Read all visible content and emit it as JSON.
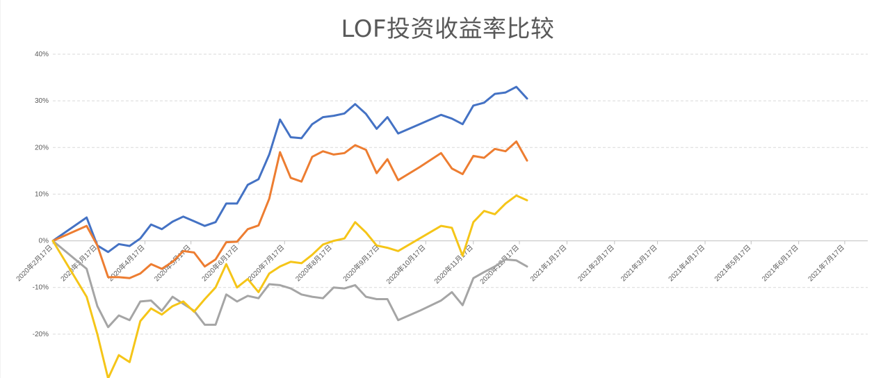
{
  "chart_data": {
    "type": "line",
    "title": "LOF投资收益率比较",
    "xlabel": "",
    "ylabel": "",
    "ylim": [
      -0.3,
      0.4
    ],
    "y_ticks": [
      {
        "value": 0.4,
        "label": "40%"
      },
      {
        "value": 0.3,
        "label": "30%"
      },
      {
        "value": 0.2,
        "label": "20%"
      },
      {
        "value": 0.1,
        "label": "10%"
      },
      {
        "value": 0.0,
        "label": "0%"
      },
      {
        "value": -0.1,
        "label": "-10%"
      },
      {
        "value": -0.2,
        "label": "-20%"
      }
    ],
    "x_ticks": [
      "2020年2月17日",
      "2020年3月17日",
      "2020年4月17日",
      "2020年5月17日",
      "2020年6月17日",
      "2020年7月17日",
      "2020年8月17日",
      "2020年9月17日",
      "2020年10月17日",
      "2020年11月17日",
      "2020年12月17日",
      "2021年1月17日",
      "2021年2月17日",
      "2021年3月17日",
      "2021年4月17日",
      "2021年5月17日",
      "2021年6月17日",
      "2021年7月17日"
    ],
    "x_range": [
      "2020-02-17",
      "2021-08-01"
    ],
    "grid": true,
    "series": [
      {
        "color": "#4472C4",
        "points": [
          [
            "2020-02-17",
            0.0
          ],
          [
            "2020-03-10",
            0.05
          ],
          [
            "2020-03-17",
            -0.01
          ],
          [
            "2020-03-24",
            -0.024
          ],
          [
            "2020-03-31",
            -0.007
          ],
          [
            "2020-04-07",
            -0.011
          ],
          [
            "2020-04-14",
            0.005
          ],
          [
            "2020-04-21",
            0.035
          ],
          [
            "2020-04-28",
            0.025
          ],
          [
            "2020-05-05",
            0.041
          ],
          [
            "2020-05-12",
            0.052
          ],
          [
            "2020-05-19",
            0.042
          ],
          [
            "2020-05-26",
            0.032
          ],
          [
            "2020-06-02",
            0.04
          ],
          [
            "2020-06-09",
            0.08
          ],
          [
            "2020-06-16",
            0.08
          ],
          [
            "2020-06-23",
            0.12
          ],
          [
            "2020-06-30",
            0.132
          ],
          [
            "2020-07-07",
            0.185
          ],
          [
            "2020-07-14",
            0.26
          ],
          [
            "2020-07-21",
            0.222
          ],
          [
            "2020-07-28",
            0.22
          ],
          [
            "2020-08-04",
            0.25
          ],
          [
            "2020-08-11",
            0.265
          ],
          [
            "2020-08-18",
            0.268
          ],
          [
            "2020-08-25",
            0.273
          ],
          [
            "2020-09-01",
            0.293
          ],
          [
            "2020-09-08",
            0.272
          ],
          [
            "2020-09-15",
            0.24
          ],
          [
            "2020-09-22",
            0.265
          ],
          [
            "2020-09-29",
            0.23
          ],
          [
            "2020-10-13",
            0.25
          ],
          [
            "2020-10-27",
            0.27
          ],
          [
            "2020-11-03",
            0.262
          ],
          [
            "2020-11-10",
            0.25
          ],
          [
            "2020-11-17",
            0.29
          ],
          [
            "2020-11-24",
            0.296
          ],
          [
            "2020-12-01",
            0.315
          ],
          [
            "2020-12-08",
            0.318
          ],
          [
            "2020-12-15",
            0.33
          ],
          [
            "2020-12-22",
            0.305
          ]
        ]
      },
      {
        "color": "#ED7D31",
        "points": [
          [
            "2020-02-17",
            0.0
          ],
          [
            "2020-03-10",
            0.032
          ],
          [
            "2020-03-17",
            -0.01
          ],
          [
            "2020-03-24",
            -0.078
          ],
          [
            "2020-03-31",
            -0.078
          ],
          [
            "2020-04-07",
            -0.08
          ],
          [
            "2020-04-14",
            -0.07
          ],
          [
            "2020-04-21",
            -0.05
          ],
          [
            "2020-04-28",
            -0.06
          ],
          [
            "2020-05-05",
            -0.045
          ],
          [
            "2020-05-12",
            -0.022
          ],
          [
            "2020-05-19",
            -0.025
          ],
          [
            "2020-05-26",
            -0.055
          ],
          [
            "2020-06-02",
            -0.04
          ],
          [
            "2020-06-09",
            -0.003
          ],
          [
            "2020-06-16",
            -0.002
          ],
          [
            "2020-06-23",
            0.025
          ],
          [
            "2020-06-30",
            0.033
          ],
          [
            "2020-07-07",
            0.09
          ],
          [
            "2020-07-14",
            0.19
          ],
          [
            "2020-07-21",
            0.135
          ],
          [
            "2020-07-28",
            0.127
          ],
          [
            "2020-08-04",
            0.18
          ],
          [
            "2020-08-11",
            0.192
          ],
          [
            "2020-08-18",
            0.185
          ],
          [
            "2020-08-25",
            0.188
          ],
          [
            "2020-09-01",
            0.205
          ],
          [
            "2020-09-08",
            0.195
          ],
          [
            "2020-09-15",
            0.145
          ],
          [
            "2020-09-22",
            0.175
          ],
          [
            "2020-09-29",
            0.13
          ],
          [
            "2020-10-13",
            0.158
          ],
          [
            "2020-10-27",
            0.188
          ],
          [
            "2020-11-03",
            0.155
          ],
          [
            "2020-11-10",
            0.143
          ],
          [
            "2020-11-17",
            0.182
          ],
          [
            "2020-11-24",
            0.178
          ],
          [
            "2020-12-01",
            0.197
          ],
          [
            "2020-12-08",
            0.192
          ],
          [
            "2020-12-15",
            0.213
          ],
          [
            "2020-12-22",
            0.172
          ]
        ]
      },
      {
        "color": "#A5A5A5",
        "points": [
          [
            "2020-02-17",
            0.0
          ],
          [
            "2020-03-10",
            -0.06
          ],
          [
            "2020-03-17",
            -0.14
          ],
          [
            "2020-03-24",
            -0.185
          ],
          [
            "2020-03-31",
            -0.16
          ],
          [
            "2020-04-07",
            -0.17
          ],
          [
            "2020-04-14",
            -0.13
          ],
          [
            "2020-04-21",
            -0.128
          ],
          [
            "2020-04-28",
            -0.15
          ],
          [
            "2020-05-05",
            -0.12
          ],
          [
            "2020-05-12",
            -0.135
          ],
          [
            "2020-05-19",
            -0.15
          ],
          [
            "2020-05-26",
            -0.18
          ],
          [
            "2020-06-02",
            -0.18
          ],
          [
            "2020-06-09",
            -0.115
          ],
          [
            "2020-06-16",
            -0.13
          ],
          [
            "2020-06-23",
            -0.118
          ],
          [
            "2020-06-30",
            -0.123
          ],
          [
            "2020-07-07",
            -0.093
          ],
          [
            "2020-07-14",
            -0.095
          ],
          [
            "2020-07-21",
            -0.102
          ],
          [
            "2020-07-28",
            -0.115
          ],
          [
            "2020-08-04",
            -0.12
          ],
          [
            "2020-08-11",
            -0.123
          ],
          [
            "2020-08-18",
            -0.1
          ],
          [
            "2020-08-25",
            -0.102
          ],
          [
            "2020-09-01",
            -0.095
          ],
          [
            "2020-09-08",
            -0.12
          ],
          [
            "2020-09-15",
            -0.125
          ],
          [
            "2020-09-22",
            -0.125
          ],
          [
            "2020-09-29",
            -0.17
          ],
          [
            "2020-10-13",
            -0.15
          ],
          [
            "2020-10-27",
            -0.128
          ],
          [
            "2020-11-03",
            -0.11
          ],
          [
            "2020-11-10",
            -0.138
          ],
          [
            "2020-11-17",
            -0.08
          ],
          [
            "2020-11-24",
            -0.067
          ],
          [
            "2020-12-01",
            -0.055
          ],
          [
            "2020-12-08",
            -0.04
          ],
          [
            "2020-12-15",
            -0.042
          ],
          [
            "2020-12-22",
            -0.055
          ]
        ]
      },
      {
        "color": "#F5C518",
        "points": [
          [
            "2020-02-17",
            0.0
          ],
          [
            "2020-03-10",
            -0.12
          ],
          [
            "2020-03-17",
            -0.2
          ],
          [
            "2020-03-24",
            -0.295
          ],
          [
            "2020-03-31",
            -0.245
          ],
          [
            "2020-04-07",
            -0.26
          ],
          [
            "2020-04-14",
            -0.172
          ],
          [
            "2020-04-21",
            -0.145
          ],
          [
            "2020-04-28",
            -0.158
          ],
          [
            "2020-05-05",
            -0.14
          ],
          [
            "2020-05-12",
            -0.13
          ],
          [
            "2020-05-19",
            -0.152
          ],
          [
            "2020-05-26",
            -0.125
          ],
          [
            "2020-06-02",
            -0.1
          ],
          [
            "2020-06-09",
            -0.05
          ],
          [
            "2020-06-16",
            -0.1
          ],
          [
            "2020-06-23",
            -0.082
          ],
          [
            "2020-06-30",
            -0.11
          ],
          [
            "2020-07-07",
            -0.07
          ],
          [
            "2020-07-14",
            -0.055
          ],
          [
            "2020-07-21",
            -0.045
          ],
          [
            "2020-07-28",
            -0.048
          ],
          [
            "2020-08-04",
            -0.03
          ],
          [
            "2020-08-11",
            -0.008
          ],
          [
            "2020-08-18",
            0.0
          ],
          [
            "2020-08-25",
            0.005
          ],
          [
            "2020-09-01",
            0.04
          ],
          [
            "2020-09-08",
            0.018
          ],
          [
            "2020-09-15",
            -0.01
          ],
          [
            "2020-09-22",
            -0.015
          ],
          [
            "2020-09-29",
            -0.022
          ],
          [
            "2020-10-13",
            0.005
          ],
          [
            "2020-10-27",
            0.032
          ],
          [
            "2020-11-03",
            0.028
          ],
          [
            "2020-11-10",
            -0.032
          ],
          [
            "2020-11-17",
            0.04
          ],
          [
            "2020-11-24",
            0.064
          ],
          [
            "2020-12-01",
            0.057
          ],
          [
            "2020-12-08",
            0.08
          ],
          [
            "2020-12-15",
            0.097
          ],
          [
            "2020-12-22",
            0.087
          ]
        ]
      }
    ]
  },
  "colors": {
    "grid": "#D9D9D9",
    "axis": "#BFBFBF",
    "text": "#595959",
    "sheet_grid": "#E6E6E6"
  }
}
